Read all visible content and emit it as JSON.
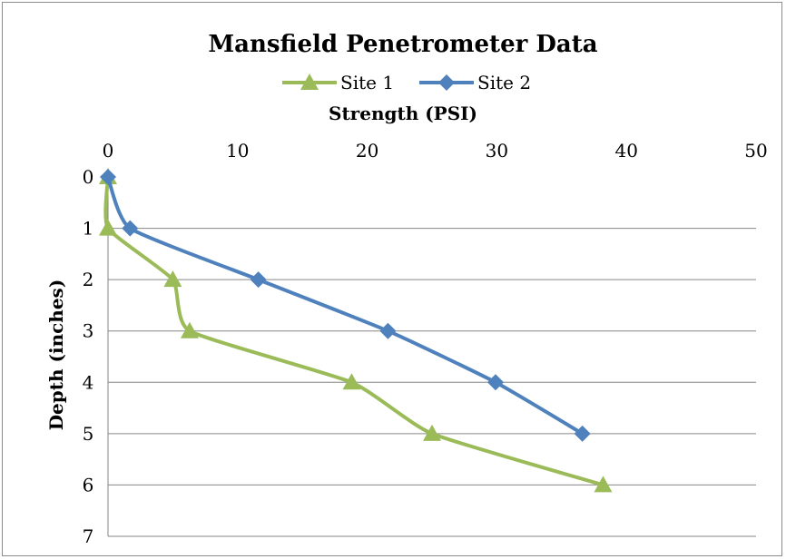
{
  "chart_data": {
    "type": "line",
    "title": "Mansfield Penetrometer Data",
    "xlabel": "Strength (PSI)",
    "ylabel": "Depth (inches)",
    "xlim": [
      0,
      50
    ],
    "ylim": [
      0,
      7
    ],
    "y_inverted": true,
    "x_axis_position": "top",
    "x_ticks": [
      "0",
      "10",
      "20",
      "30",
      "40",
      "50"
    ],
    "y_ticks": [
      "0",
      "1",
      "2",
      "3",
      "4",
      "5",
      "6",
      "7"
    ],
    "grid": "horizontal",
    "smoothed": true,
    "legend_position": "top",
    "series": [
      {
        "name": "Site 1",
        "color": "#9bbb59",
        "marker": "triangle",
        "points": [
          {
            "strength": 0,
            "depth": 0
          },
          {
            "strength": 0,
            "depth": 1
          },
          {
            "strength": 5,
            "depth": 2
          },
          {
            "strength": 6.3,
            "depth": 3
          },
          {
            "strength": 18.8,
            "depth": 4
          },
          {
            "strength": 25,
            "depth": 5
          },
          {
            "strength": 38.2,
            "depth": 6
          }
        ]
      },
      {
        "name": "Site 2",
        "color": "#4f81bd",
        "marker": "diamond",
        "points": [
          {
            "strength": 0,
            "depth": 0
          },
          {
            "strength": 1.7,
            "depth": 1
          },
          {
            "strength": 11.6,
            "depth": 2
          },
          {
            "strength": 21.6,
            "depth": 3
          },
          {
            "strength": 29.9,
            "depth": 4
          },
          {
            "strength": 36.6,
            "depth": 5
          }
        ]
      }
    ]
  }
}
